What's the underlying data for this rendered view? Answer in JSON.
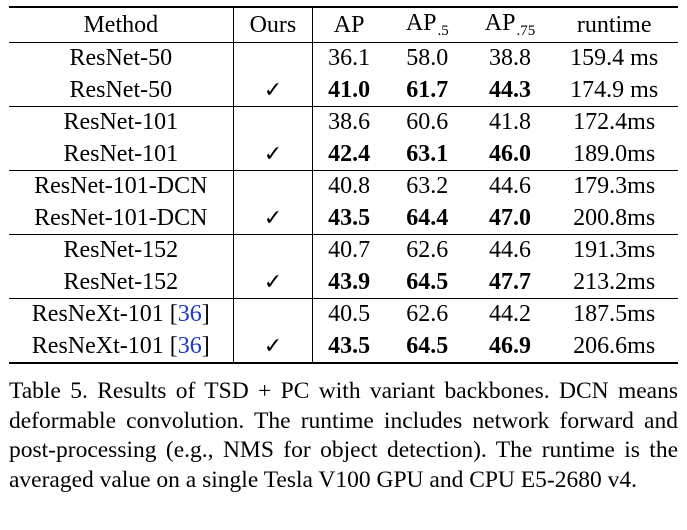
{
  "table": {
    "headers": {
      "method": "Method",
      "ours": "Ours",
      "ap": "AP",
      "ap50_base": "AP",
      "ap50_sub": ".5",
      "ap75_base": "AP",
      "ap75_sub": ".75",
      "runtime": "runtime"
    },
    "checkmark": "✓",
    "rows": [
      {
        "method": "ResNet-50",
        "ref": "",
        "ours": false,
        "ap": "36.1",
        "ap50": "58.0",
        "ap75": "38.8",
        "runtime": "159.4 ms"
      },
      {
        "method": "ResNet-50",
        "ref": "",
        "ours": true,
        "ap": "41.0",
        "ap50": "61.7",
        "ap75": "44.3",
        "runtime": "174.9 ms"
      },
      {
        "method": "ResNet-101",
        "ref": "",
        "ours": false,
        "ap": "38.6",
        "ap50": "60.6",
        "ap75": "41.8",
        "runtime": "172.4ms"
      },
      {
        "method": "ResNet-101",
        "ref": "",
        "ours": true,
        "ap": "42.4",
        "ap50": "63.1",
        "ap75": "46.0",
        "runtime": "189.0ms"
      },
      {
        "method": "ResNet-101-DCN",
        "ref": "",
        "ours": false,
        "ap": "40.8",
        "ap50": "63.2",
        "ap75": "44.6",
        "runtime": "179.3ms"
      },
      {
        "method": "ResNet-101-DCN",
        "ref": "",
        "ours": true,
        "ap": "43.5",
        "ap50": "64.4",
        "ap75": "47.0",
        "runtime": "200.8ms"
      },
      {
        "method": "ResNet-152",
        "ref": "",
        "ours": false,
        "ap": "40.7",
        "ap50": "62.6",
        "ap75": "44.6",
        "runtime": "191.3ms"
      },
      {
        "method": "ResNet-152",
        "ref": "",
        "ours": true,
        "ap": "43.9",
        "ap50": "64.5",
        "ap75": "47.7",
        "runtime": "213.2ms"
      },
      {
        "method": "ResNeXt-101 [",
        "ref": "36",
        "ref_close": "]",
        "ours": false,
        "ap": "40.5",
        "ap50": "62.6",
        "ap75": "44.2",
        "runtime": "187.5ms"
      },
      {
        "method": "ResNeXt-101 [",
        "ref": "36",
        "ref_close": "]",
        "ours": true,
        "ap": "43.5",
        "ap50": "64.5",
        "ap75": "46.9",
        "runtime": "206.6ms"
      }
    ]
  },
  "caption": "Table 5. Results of TSD + PC with variant backbones. DCN means deformable convolution.  The runtime includes network forward and post-processing (e.g., NMS for object detection). The runtime is the averaged value on a single Tesla V100 GPU and CPU E5-2680 v4.",
  "colors": {
    "reference_link": "#1a35c9",
    "text": "#000000"
  }
}
